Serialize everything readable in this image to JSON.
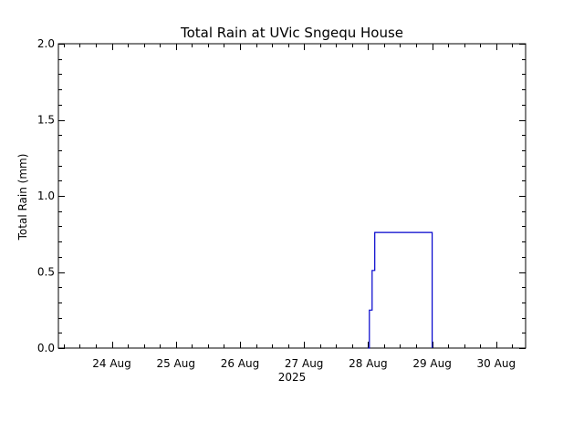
{
  "chart_data": {
    "type": "line",
    "title": "Total Rain at UVic Sngequ House",
    "xlabel": "2025",
    "ylabel": "Total Rain (mm)",
    "x_tick_labels": [
      "24 Aug",
      "25 Aug",
      "26 Aug",
      "27 Aug",
      "28 Aug",
      "29 Aug",
      "30 Aug"
    ],
    "y_tick_labels": [
      "0.0",
      "0.5",
      "1.0",
      "1.5",
      "2.0"
    ],
    "xlim": [
      "2025-08-23 04:00",
      "2025-08-30 11:00"
    ],
    "ylim": [
      0,
      2.0
    ],
    "grid": false,
    "line_color": "#0000cc",
    "series": [
      {
        "points": [
          {
            "x": "2025-08-28 00:00",
            "y": 0.0
          },
          {
            "x": "2025-08-28 00:30",
            "y": 0.0
          },
          {
            "x": "2025-08-28 00:30",
            "y": 0.25
          },
          {
            "x": "2025-08-28 01:30",
            "y": 0.25
          },
          {
            "x": "2025-08-28 01:30",
            "y": 0.51
          },
          {
            "x": "2025-08-28 02:30",
            "y": 0.51
          },
          {
            "x": "2025-08-28 02:30",
            "y": 0.76
          },
          {
            "x": "2025-08-29 00:00",
            "y": 0.76
          },
          {
            "x": "2025-08-29 00:00",
            "y": 0.0
          }
        ]
      }
    ]
  }
}
